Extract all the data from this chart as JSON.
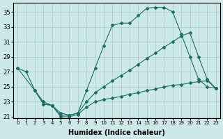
{
  "xlabel": "Humidex (Indice chaleur)",
  "background_color": "#cde8e8",
  "grid_color": "#aacccc",
  "line_color": "#1a6e62",
  "xlim": [
    -0.5,
    23.5
  ],
  "ylim": [
    20.8,
    36.2
  ],
  "yticks": [
    21,
    23,
    25,
    27,
    29,
    31,
    33,
    35
  ],
  "xticks": [
    0,
    1,
    2,
    3,
    4,
    5,
    6,
    7,
    8,
    9,
    10,
    11,
    12,
    13,
    14,
    15,
    16,
    17,
    18,
    19,
    20,
    21,
    22,
    23
  ],
  "curve1_x": [
    0,
    1,
    2,
    3,
    4,
    5,
    6,
    7,
    8,
    9,
    10,
    11,
    12,
    13,
    14,
    15,
    16,
    17,
    18,
    19,
    20,
    21,
    22,
    23
  ],
  "curve1_y": [
    27.5,
    27.0,
    24.5,
    22.7,
    22.5,
    21.2,
    21.2,
    21.5,
    24.5,
    27.5,
    30.5,
    33.2,
    33.5,
    33.5,
    34.5,
    35.5,
    35.6,
    35.6,
    35.0,
    32.0,
    29.0,
    26.0,
    25.0,
    24.8
  ],
  "curve2_x": [
    0,
    2,
    3,
    4,
    5,
    6,
    7,
    8,
    9,
    10,
    11,
    12,
    13,
    14,
    15,
    16,
    17,
    18,
    19,
    20,
    21,
    22,
    23
  ],
  "curve2_y": [
    27.5,
    24.5,
    23.0,
    22.5,
    21.5,
    21.2,
    21.5,
    23.0,
    24.2,
    25.0,
    25.8,
    26.5,
    27.2,
    28.0,
    28.8,
    29.5,
    30.3,
    31.0,
    31.8,
    32.2,
    29.0,
    26.0,
    24.8
  ],
  "curve3_x": [
    2,
    3,
    4,
    5,
    6,
    7,
    8,
    9,
    10,
    11,
    12,
    13,
    14,
    15,
    16,
    17,
    18,
    19,
    20,
    21,
    22,
    23
  ],
  "curve3_y": [
    24.5,
    22.7,
    22.5,
    21.0,
    21.0,
    21.3,
    22.3,
    23.0,
    23.3,
    23.5,
    23.7,
    24.0,
    24.2,
    24.5,
    24.7,
    25.0,
    25.2,
    25.3,
    25.5,
    25.7,
    25.8,
    24.8
  ]
}
